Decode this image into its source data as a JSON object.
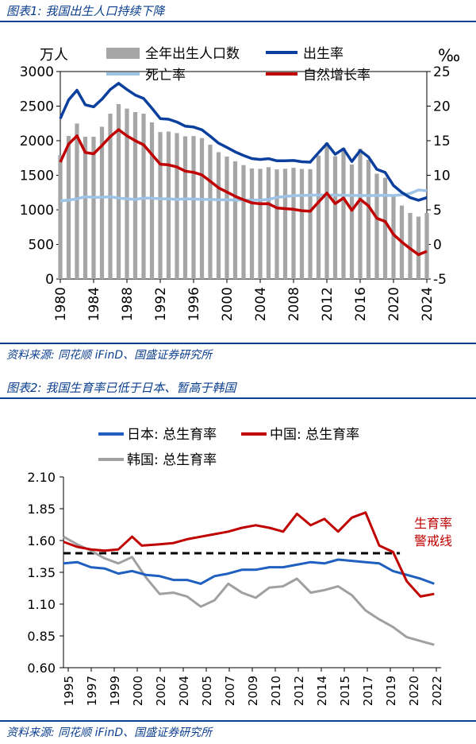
{
  "figure1": {
    "caption": "图表1:  我国出生人口持续下降",
    "source": "资料来源:  同花顺 iFinD、国盛证券研究所",
    "colors": {
      "bar": "#a6a6a6",
      "birth": "#0b3f9e",
      "death": "#9dc3e6",
      "natural": "#c00000"
    },
    "chart_data": {
      "type": "bar",
      "left_unit": "万人",
      "right_unit": "‰",
      "legend": {
        "bar": "全年出生人口数",
        "birth": "出生率",
        "death": "死亡率",
        "natural": "自然增长率"
      },
      "ylim_left": [
        0,
        3000
      ],
      "ylim_right": [
        -5,
        25
      ],
      "yticks_left": [
        "0",
        "500",
        "1000",
        "1500",
        "2000",
        "2500",
        "3000"
      ],
      "yticks_right": [
        "-5",
        "0",
        "5",
        "10",
        "15",
        "20",
        "25"
      ],
      "xticks": [
        "1980",
        "1984",
        "1988",
        "1992",
        "1996",
        "2000",
        "2004",
        "2008",
        "2012",
        "2016",
        "2020",
        "2024"
      ],
      "years": [
        1980,
        1981,
        1982,
        1983,
        1984,
        1985,
        1986,
        1987,
        1988,
        1989,
        1990,
        1991,
        1992,
        1993,
        1994,
        1995,
        1996,
        1997,
        1998,
        1999,
        2000,
        2001,
        2002,
        2003,
        2004,
        2005,
        2006,
        2007,
        2008,
        2009,
        2010,
        2011,
        2012,
        2013,
        2014,
        2015,
        2016,
        2017,
        2018,
        2019,
        2020,
        2021,
        2022,
        2023,
        2024
      ],
      "births": [
        1790,
        2069,
        2248,
        2058,
        2058,
        2202,
        2391,
        2529,
        2464,
        2414,
        2391,
        2265,
        2125,
        2132,
        2110,
        2063,
        2067,
        2038,
        1942,
        1834,
        1771,
        1702,
        1647,
        1599,
        1593,
        1617,
        1585,
        1594,
        1608,
        1591,
        1588,
        1785,
        1973,
        1776,
        1897,
        1655,
        1883,
        1723,
        1523,
        1465,
        1202,
        1062,
        956,
        902,
        954
      ],
      "birth_rate": [
        18.2,
        20.9,
        22.3,
        20.2,
        19.9,
        21.0,
        22.4,
        23.3,
        22.4,
        21.6,
        21.1,
        19.7,
        18.2,
        18.1,
        17.7,
        17.1,
        16.98,
        16.57,
        15.64,
        14.64,
        14.03,
        13.38,
        12.86,
        12.41,
        12.29,
        12.4,
        12.09,
        12.1,
        12.14,
        11.95,
        11.9,
        13.27,
        14.57,
        13.03,
        13.83,
        11.99,
        13.57,
        12.64,
        10.86,
        10.41,
        8.52,
        7.52,
        6.77,
        6.39,
        6.77
      ],
      "death_rate": [
        6.3,
        6.4,
        6.6,
        6.9,
        6.8,
        6.8,
        6.9,
        6.7,
        6.6,
        6.5,
        6.7,
        6.7,
        6.6,
        6.6,
        6.5,
        6.6,
        6.56,
        6.51,
        6.5,
        6.46,
        6.45,
        6.43,
        6.41,
        6.4,
        6.42,
        6.51,
        6.81,
        6.93,
        7.06,
        7.08,
        7.11,
        7.14,
        7.13,
        7.13,
        7.12,
        7.07,
        7.09,
        7.06,
        7.08,
        7.09,
        7.07,
        7.18,
        7.37,
        7.87,
        7.76
      ],
      "natural_rate": [
        11.9,
        14.5,
        15.7,
        13.3,
        13.1,
        14.3,
        15.6,
        16.6,
        15.7,
        15.0,
        14.4,
        13.0,
        11.6,
        11.5,
        11.2,
        10.6,
        10.42,
        10.06,
        9.14,
        8.18,
        7.58,
        6.95,
        6.45,
        6.01,
        5.87,
        5.89,
        5.28,
        5.17,
        5.08,
        4.87,
        4.79,
        6.13,
        7.43,
        5.9,
        6.71,
        4.93,
        6.53,
        5.58,
        3.78,
        3.32,
        1.45,
        0.34,
        -0.6,
        -1.48,
        -0.99
      ]
    }
  },
  "figure2": {
    "caption": "图表2:  我国生育率已低于日本、暂高于韩国",
    "source": "资料来源:  同花顺 iFinD、国盛证券研究所",
    "colors": {
      "japan": "#1f5fbf",
      "china": "#c00000",
      "korea": "#a0a0a0",
      "warning": "#000000"
    },
    "chart_data": {
      "type": "line",
      "legend": {
        "japan": "日本:  总生育率",
        "china": "中国:  总生育率",
        "korea": "韩国:  总生育率"
      },
      "warning_label_line1": "生育率",
      "warning_label_line2": "警戒线",
      "warning_value": 1.5,
      "ylim": [
        0.6,
        2.1
      ],
      "yticks": [
        "0.60",
        "0.85",
        "1.10",
        "1.35",
        "1.60",
        "1.85",
        "2.10"
      ],
      "xticks": [
        "1995",
        "1997",
        "1999",
        "2000",
        "2002",
        "2004",
        "2005",
        "2007",
        "2009",
        "2010",
        "2012",
        "2014",
        "2015",
        "2017",
        "2019",
        "2020",
        "2022"
      ],
      "japan": [
        [
          1995,
          1.42
        ],
        [
          1996,
          1.43
        ],
        [
          1997,
          1.39
        ],
        [
          1998,
          1.38
        ],
        [
          1999,
          1.34
        ],
        [
          2000,
          1.36
        ],
        [
          2001,
          1.33
        ],
        [
          2002,
          1.32
        ],
        [
          2003,
          1.29
        ],
        [
          2004,
          1.29
        ],
        [
          2005,
          1.26
        ],
        [
          2006,
          1.32
        ],
        [
          2007,
          1.34
        ],
        [
          2008,
          1.37
        ],
        [
          2009,
          1.37
        ],
        [
          2010,
          1.39
        ],
        [
          2011,
          1.39
        ],
        [
          2012,
          1.41
        ],
        [
          2013,
          1.43
        ],
        [
          2014,
          1.42
        ],
        [
          2015,
          1.45
        ],
        [
          2016,
          1.44
        ],
        [
          2017,
          1.43
        ],
        [
          2018,
          1.42
        ],
        [
          2019,
          1.36
        ],
        [
          2020,
          1.33
        ],
        [
          2021,
          1.3
        ],
        [
          2022,
          1.26
        ]
      ],
      "china": [
        [
          1995,
          1.59
        ],
        [
          1996,
          1.55
        ],
        [
          1997,
          1.53
        ],
        [
          1998,
          1.52
        ],
        [
          1999,
          1.53
        ],
        [
          2000,
          1.63
        ],
        [
          2000.7,
          1.56
        ],
        [
          2002,
          1.57
        ],
        [
          2003,
          1.58
        ],
        [
          2004,
          1.61
        ],
        [
          2005,
          1.63
        ],
        [
          2006,
          1.65
        ],
        [
          2007,
          1.67
        ],
        [
          2008,
          1.7
        ],
        [
          2009,
          1.72
        ],
        [
          2010,
          1.7
        ],
        [
          2011,
          1.67
        ],
        [
          2012,
          1.81
        ],
        [
          2013,
          1.72
        ],
        [
          2014,
          1.77
        ],
        [
          2015,
          1.67
        ],
        [
          2016,
          1.78
        ],
        [
          2017,
          1.82
        ],
        [
          2018,
          1.56
        ],
        [
          2019,
          1.51
        ],
        [
          2020,
          1.28
        ],
        [
          2021,
          1.16
        ],
        [
          2022,
          1.18
        ]
      ],
      "korea": [
        [
          1995,
          1.63
        ],
        [
          1996,
          1.57
        ],
        [
          1997,
          1.52
        ],
        [
          1998,
          1.46
        ],
        [
          1999,
          1.42
        ],
        [
          2000,
          1.47
        ],
        [
          2001,
          1.31
        ],
        [
          2002,
          1.18
        ],
        [
          2003,
          1.19
        ],
        [
          2004,
          1.16
        ],
        [
          2005,
          1.08
        ],
        [
          2006,
          1.13
        ],
        [
          2007,
          1.26
        ],
        [
          2008,
          1.19
        ],
        [
          2009,
          1.15
        ],
        [
          2010,
          1.23
        ],
        [
          2011,
          1.24
        ],
        [
          2012,
          1.3
        ],
        [
          2013,
          1.19
        ],
        [
          2014,
          1.21
        ],
        [
          2015,
          1.24
        ],
        [
          2016,
          1.17
        ],
        [
          2017,
          1.05
        ],
        [
          2018,
          0.98
        ],
        [
          2019,
          0.92
        ],
        [
          2020,
          0.84
        ],
        [
          2021,
          0.81
        ],
        [
          2022,
          0.78
        ]
      ]
    }
  }
}
